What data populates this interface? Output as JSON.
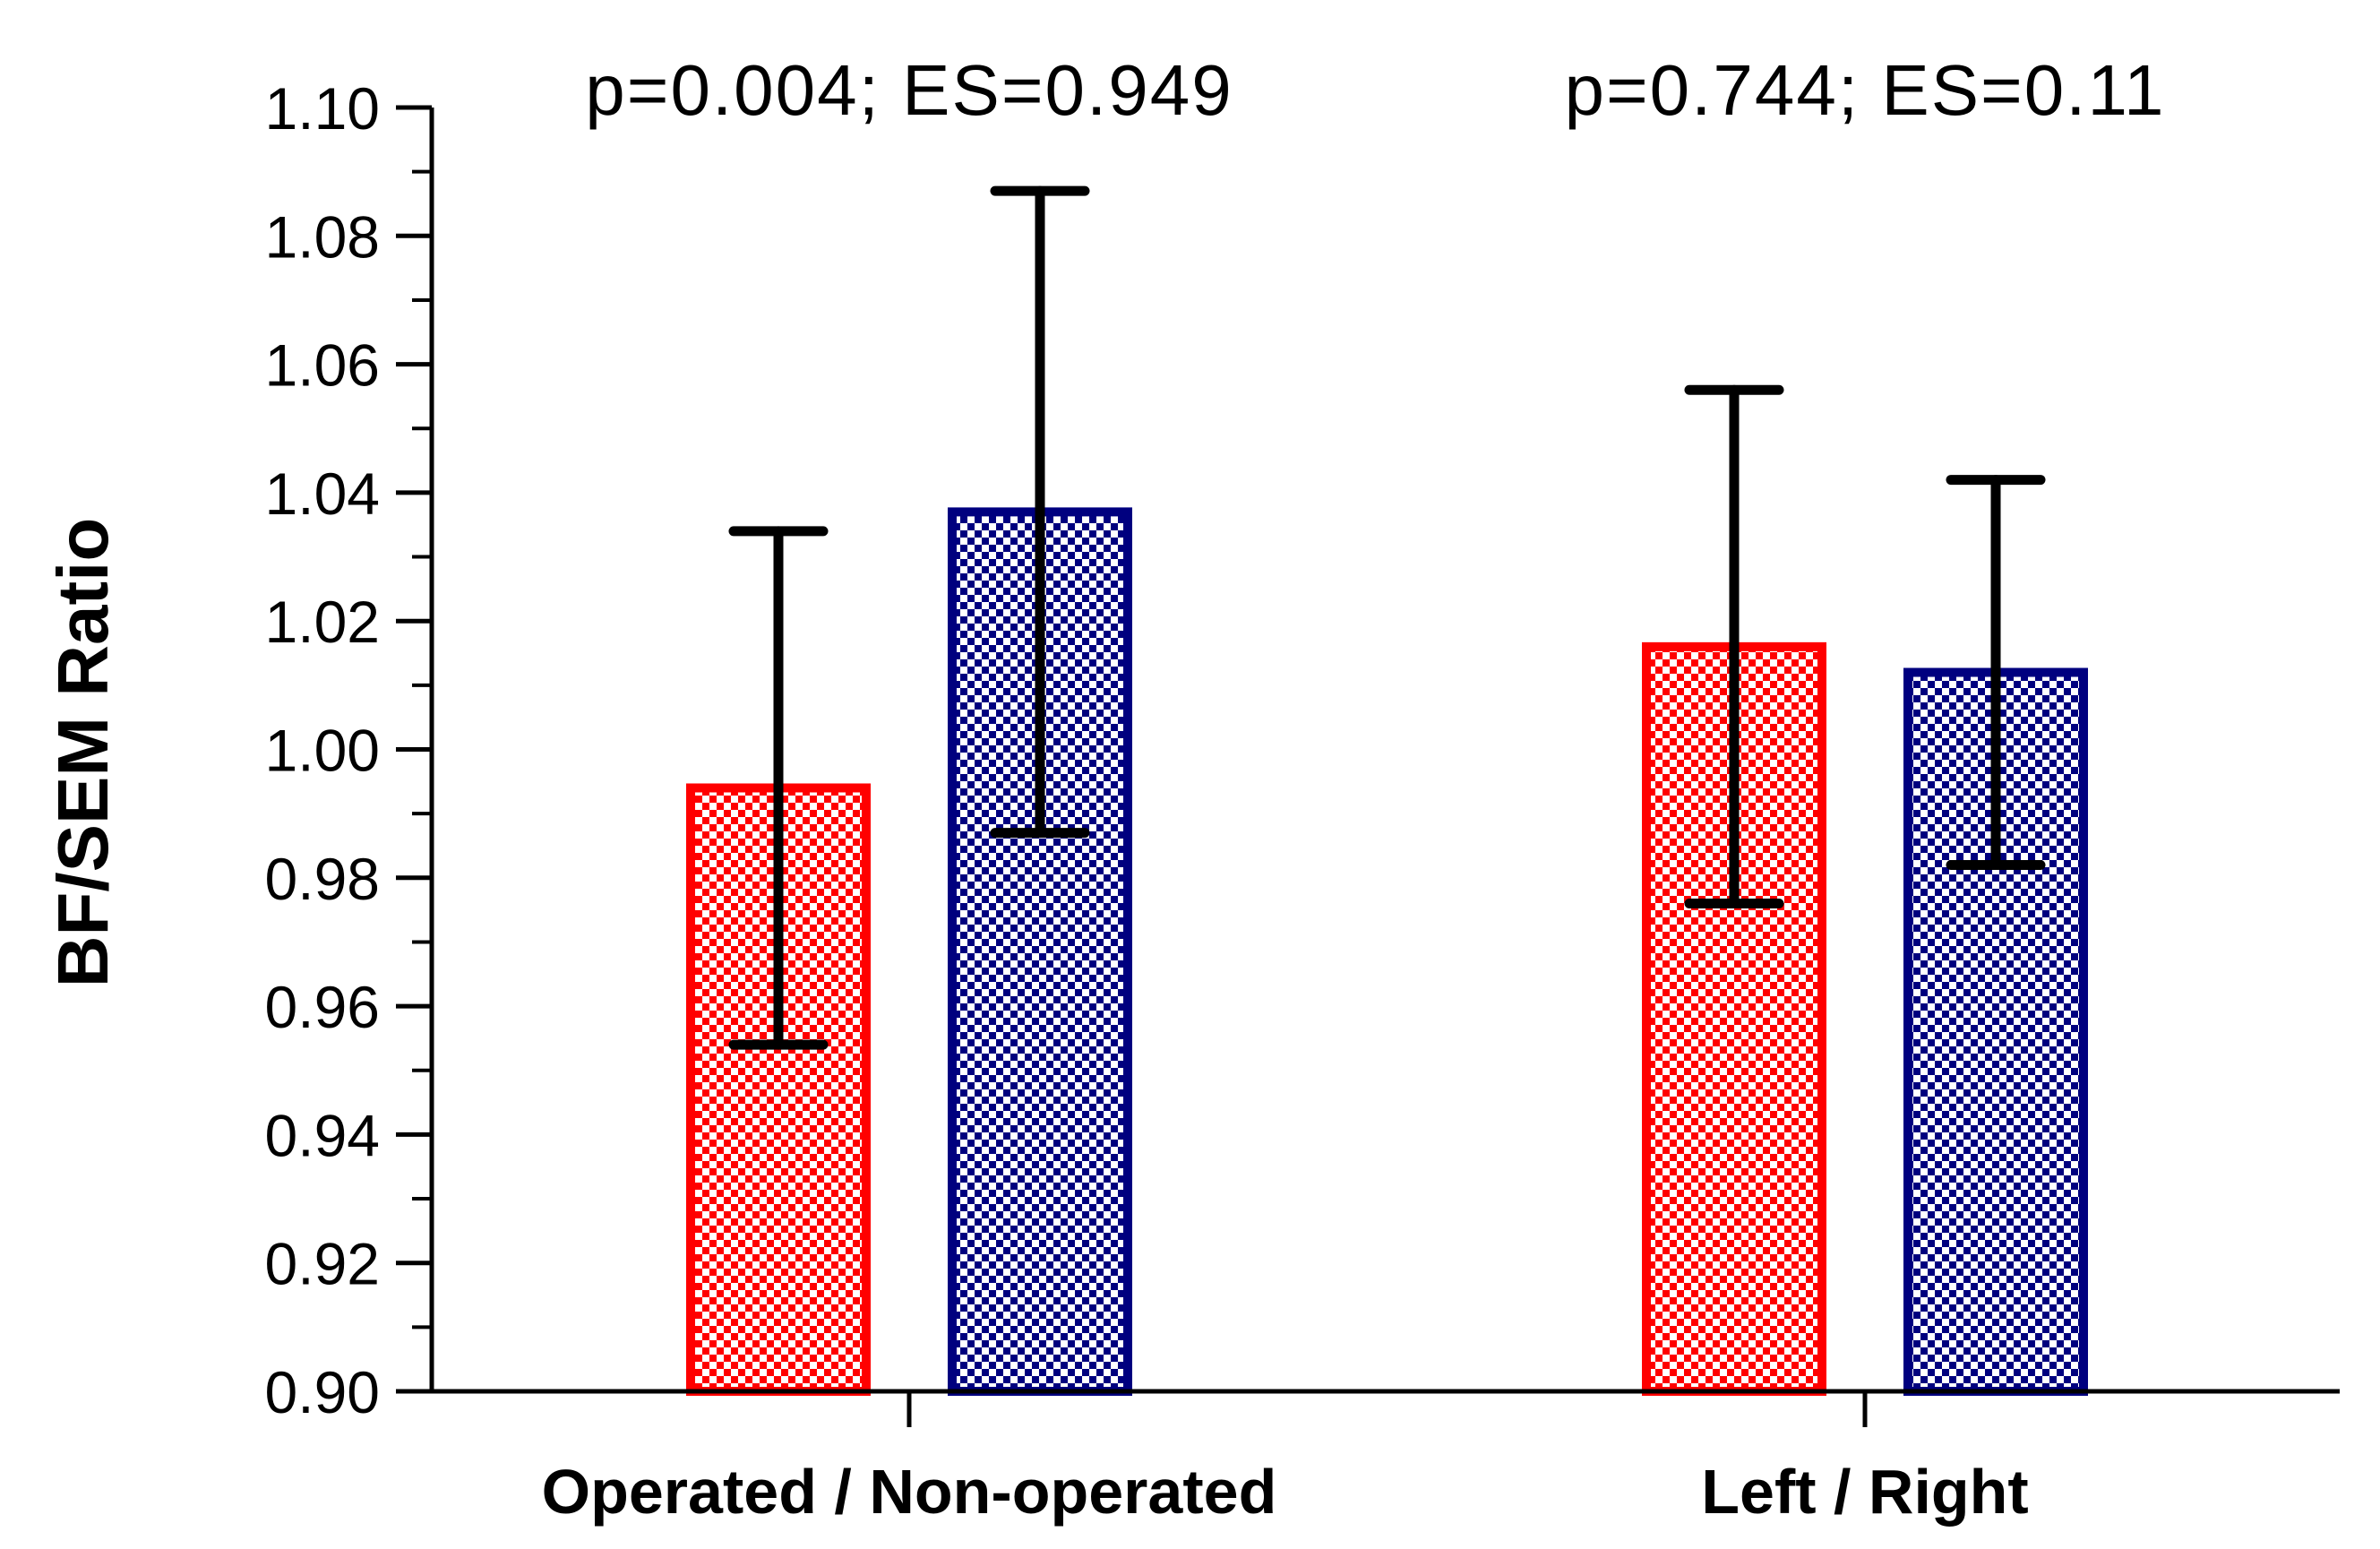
{
  "chart_data": {
    "type": "bar",
    "categories": [
      "Operated / Non-operated",
      "Left / Right"
    ],
    "series": [
      {
        "color": "#ff0000",
        "values": [
          0.994,
          1.016
        ],
        "error_low": [
          0.954,
          0.976
        ],
        "error_high": [
          1.034,
          1.056
        ]
      },
      {
        "color": "#00007f",
        "values": [
          1.037,
          1.012
        ],
        "error_low": [
          0.987,
          0.982
        ],
        "error_high": [
          1.087,
          1.042
        ]
      }
    ],
    "ylabel": "BF/SEM Ratio",
    "ylim": [
      0.9,
      1.1
    ],
    "yticks": [
      "0.90",
      "0.92",
      "0.94",
      "0.96",
      "0.98",
      "1.00",
      "1.02",
      "1.04",
      "1.06",
      "1.08",
      "1.10"
    ],
    "annotations": [
      "p=0.004; ES=0.949",
      "p=0.744; ES=0.11"
    ],
    "pattern": "checkered",
    "grid": false,
    "legend": "none"
  }
}
